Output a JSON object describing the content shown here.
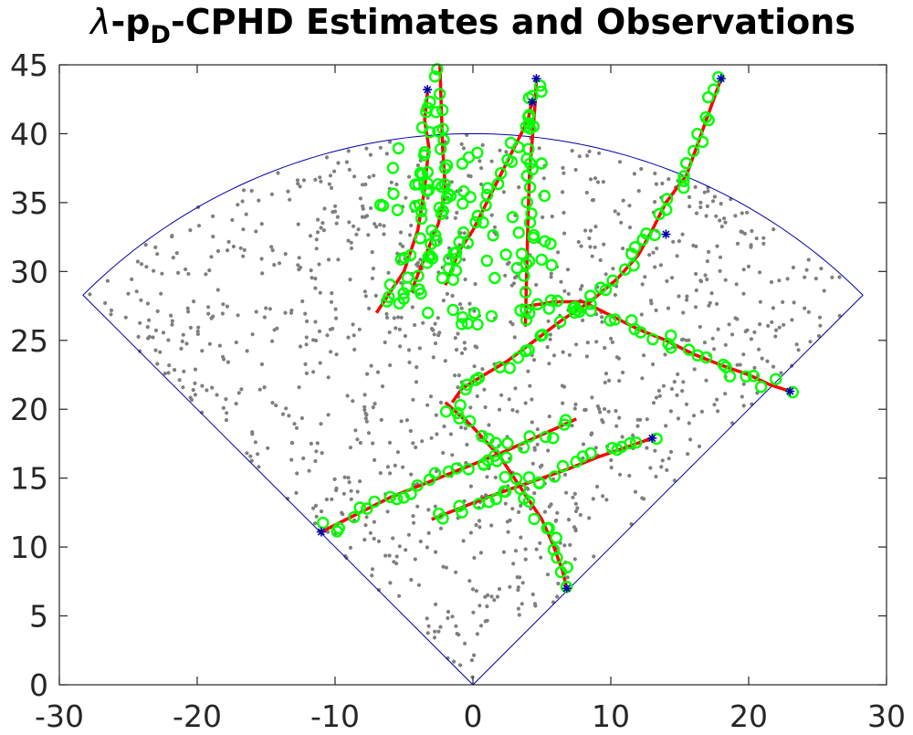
{
  "chart_data": {
    "type": "scatter",
    "title": {
      "lambda": "λ",
      "prefix": "-p",
      "subscript": "D",
      "suffix": "-CPHD Estimates and Observations"
    },
    "xlabel": "",
    "ylabel": "",
    "xlim": [
      -30,
      30
    ],
    "ylim": [
      0,
      45
    ],
    "xticks": [
      -30,
      -20,
      -10,
      0,
      10,
      20,
      30
    ],
    "yticks": [
      0,
      5,
      10,
      15,
      20,
      25,
      30,
      35,
      40,
      45
    ],
    "grid": false,
    "legend": "none",
    "colors": {
      "axes": "#262626",
      "field_of_view": "#0000aa",
      "clutter": "#7f7f7f",
      "tracks": "#ff0000",
      "estimates": "#00ff00",
      "endpoints": "#0000aa"
    },
    "field_of_view": {
      "range": 40,
      "half_angle_deg": 45
    },
    "series": [
      {
        "role": "track",
        "marker": "line",
        "x": [
          -11.0,
          -10.0,
          -8.0,
          -6.0,
          -4.0,
          -2.0,
          0.0,
          2.0,
          4.0,
          6.0,
          7.5
        ],
        "y": [
          11.1,
          11.6,
          12.6,
          13.6,
          14.4,
          15.2,
          16.0,
          16.8,
          17.7,
          18.6,
          19.3
        ]
      },
      {
        "role": "track",
        "marker": "line",
        "x": [
          -3.0,
          -1.0,
          1.0,
          3.0,
          5.0,
          7.0,
          9.0,
          11.0,
          13.0
        ],
        "y": [
          12.0,
          12.8,
          13.6,
          14.3,
          15.0,
          15.7,
          16.5,
          17.2,
          17.9
        ]
      },
      {
        "role": "track",
        "marker": "line",
        "x": [
          -2.0,
          -1.0,
          0.0,
          1.0,
          2.0,
          3.0,
          4.0,
          5.0,
          5.8,
          6.5,
          6.8
        ],
        "y": [
          20.5,
          19.6,
          18.7,
          17.6,
          16.5,
          15.0,
          13.5,
          12.0,
          10.2,
          8.3,
          7.0
        ]
      },
      {
        "role": "track",
        "marker": "line",
        "x": [
          -1.5,
          -0.8,
          0.5,
          2.5,
          4.5,
          6.5,
          8.5,
          10.5,
          12.0,
          13.0,
          14.0,
          15.5,
          18.0
        ],
        "y": [
          20.5,
          21.5,
          22.3,
          23.5,
          25.0,
          26.5,
          27.8,
          29.5,
          31.2,
          33.0,
          35.0,
          37.0,
          44.0
        ]
      },
      {
        "role": "track",
        "marker": "line",
        "x": [
          4.0,
          6.0,
          8.0,
          10.0,
          12.0,
          14.0,
          16.0,
          18.0,
          20.0,
          21.5,
          23.0
        ],
        "y": [
          27.5,
          27.8,
          27.8,
          26.8,
          25.8,
          25.0,
          24.0,
          23.2,
          22.5,
          21.8,
          21.3
        ]
      },
      {
        "role": "track",
        "marker": "line",
        "x": [
          3.8,
          3.9,
          4.0,
          4.1,
          4.3,
          4.5,
          4.6
        ],
        "y": [
          26.0,
          30.0,
          34.0,
          37.0,
          39.5,
          42.0,
          44.0
        ]
      },
      {
        "role": "track",
        "marker": "line",
        "x": [
          -7.0,
          -6.0,
          -5.0,
          -4.0,
          -3.5,
          -3.2,
          -3.5,
          -3.3
        ],
        "y": [
          27.0,
          28.5,
          30.0,
          33.0,
          36.0,
          39.0,
          41.0,
          43.0
        ]
      },
      {
        "role": "track",
        "marker": "line",
        "x": [
          -4.5,
          -3.5,
          -2.5,
          -2.0,
          -2.2,
          -2.3,
          -2.4
        ],
        "y": [
          28.5,
          31.0,
          33.5,
          36.0,
          39.0,
          42.0,
          45.0
        ]
      },
      {
        "role": "track",
        "marker": "line",
        "x": [
          -2.0,
          -1.0,
          0.0,
          1.0,
          2.0,
          3.0,
          4.0,
          4.3
        ],
        "y": [
          29.0,
          31.5,
          33.0,
          35.0,
          37.0,
          39.0,
          41.0,
          42.5
        ]
      },
      {
        "role": "endpoint",
        "marker": "asterisk",
        "x": [
          -11.0,
          6.8,
          13.0,
          18.0,
          23.0,
          14.0,
          4.6,
          4.3,
          -3.3
        ],
        "y": [
          11.1,
          7.0,
          17.9,
          44.0,
          21.3,
          32.7,
          44.0,
          42.3,
          43.2
        ]
      }
    ]
  }
}
